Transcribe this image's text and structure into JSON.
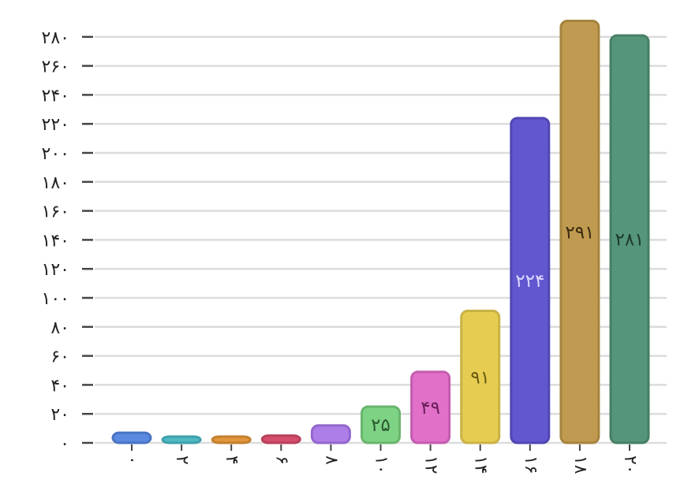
{
  "chart_data": {
    "type": "bar",
    "title": "",
    "xlabel": "",
    "ylabel": "",
    "ylim": [
      0,
      290
    ],
    "grid": true,
    "categories": [
      "۰",
      "۲",
      "۴",
      "۶",
      "۸",
      "۱۰",
      "۱۲",
      "۱۴",
      "۱۶",
      "۱۸",
      "۲۰"
    ],
    "values": [
      7,
      4,
      4,
      5,
      12,
      25,
      49,
      91,
      224,
      291,
      281
    ],
    "data_labels": [
      "",
      "",
      "",
      "",
      "",
      "۲۵",
      "۴۹",
      "۹۱",
      "۲۲۴",
      "۲۹۱",
      "۲۸۱"
    ],
    "yticks": [
      0,
      20,
      40,
      60,
      80,
      100,
      120,
      140,
      160,
      180,
      200,
      220,
      240,
      260,
      280
    ],
    "ytick_labels": [
      "۰",
      "۲۰",
      "۴۰",
      "۶۰",
      "۸۰",
      "۱۰۰",
      "۱۲۰",
      "۱۴۰",
      "۱۶۰",
      "۱۸۰",
      "۲۰۰",
      "۲۲۰",
      "۲۴۰",
      "۲۶۰",
      "۲۸۰"
    ],
    "colors": [
      "#5b8ae0",
      "#4fb8c4",
      "#e0963c",
      "#d44e6c",
      "#ad7ee8",
      "#7ed283",
      "#e070c8",
      "#e6cd52",
      "#6257cf",
      "#c09a50",
      "#55957a"
    ],
    "border_colors": [
      "#4a73c2",
      "#3fa0aa",
      "#c47f2e",
      "#b8405b",
      "#9266cc",
      "#69b56e",
      "#c45cae",
      "#c9b244",
      "#5047b3",
      "#a5843f",
      "#468065"
    ],
    "label_colors": [
      "#222222",
      "#222222",
      "#222222",
      "#222222",
      "#222222",
      "#2a5a30",
      "#6a1f58",
      "#6a5a10",
      "#ddd8ff",
      "#3a2a10",
      "#1c3a2c"
    ]
  }
}
